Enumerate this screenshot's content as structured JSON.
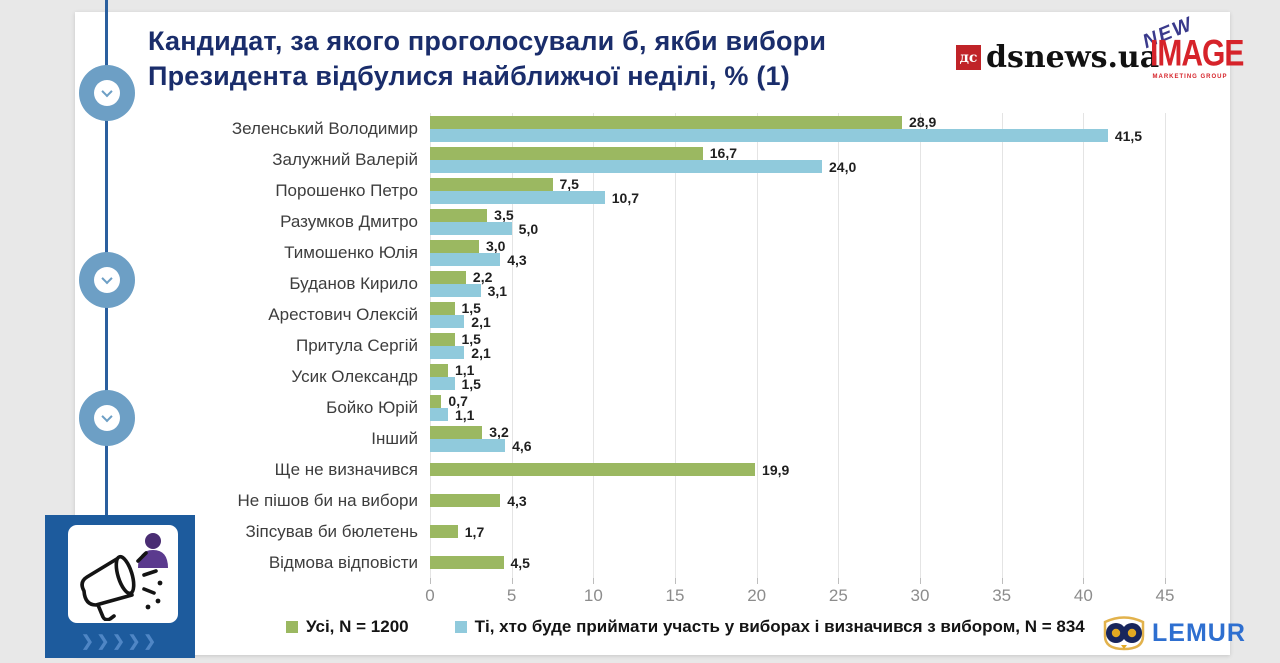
{
  "title": "Кандидат, за якого проголосували б, якби вибори Президента відбулися найближчої неділі, % (1)",
  "logos": {
    "dsnews": {
      "badge": "дс",
      "wordmark": "dsnews.ua",
      "red": "#c02328"
    },
    "new_image": {
      "line1": "NEW",
      "line2": "IMAGE",
      "line3": "MARKETING GROUP",
      "red": "#d6232a",
      "blue": "#3a3a8c"
    },
    "lemur": {
      "wordmark": "LEMUR",
      "blue": "#2e6fd0",
      "navy": "#18265c",
      "gold": "#e2a922"
    }
  },
  "chart_data": {
    "type": "bar",
    "orientation": "horizontal",
    "title": "Кандидат, за якого проголосували б, якби вибори Президента відбулися найближчої неділі, % (1)",
    "categories": [
      "Зеленський Володимир",
      "Залужний Валерій",
      "Порошенко Петро",
      "Разумков Дмитро",
      "Тимошенко Юлія",
      "Буданов Кирило",
      "Арестович Олексій",
      "Притула Сергій",
      "Усик Олександр",
      "Бойко Юрій",
      "Інший",
      "Ще не визначився",
      "Не пішов би на вибори",
      "Зіпсував би бюлетень",
      "Відмова відповісти"
    ],
    "series": [
      {
        "name": "Усі, N = 1200",
        "color": "#9bb861",
        "values": [
          28.9,
          16.7,
          7.5,
          3.5,
          3.0,
          2.2,
          1.5,
          1.5,
          1.1,
          0.7,
          3.2,
          19.9,
          4.3,
          1.7,
          4.5
        ],
        "labels": [
          "28,9",
          "16,7",
          "7,5",
          "3,5",
          "3,0",
          "2,2",
          "1,5",
          "1,5",
          "1,1",
          "0,7",
          "3,2",
          "19,9",
          "4,3",
          "1,7",
          "4,5"
        ]
      },
      {
        "name": "Ті, хто буде приймати участь у виборах і визначився з вибором, N = 834",
        "color": "#90cadc",
        "values": [
          41.5,
          24.0,
          10.7,
          5.0,
          4.3,
          3.1,
          2.1,
          2.1,
          1.5,
          1.1,
          4.6,
          null,
          null,
          null,
          null
        ],
        "labels": [
          "41,5",
          "24,0",
          "10,7",
          "5,0",
          "4,3",
          "3,1",
          "2,1",
          "2,1",
          "1,5",
          "1,1",
          "4,6",
          null,
          null,
          null,
          null
        ]
      }
    ],
    "xlim": [
      0,
      45
    ],
    "x_ticks": [
      0,
      5,
      10,
      15,
      20,
      25,
      30,
      35,
      40,
      45
    ],
    "grid": true,
    "legend_position": "bottom"
  },
  "promo": {
    "chevrons": "❯❯❯❯❯"
  }
}
